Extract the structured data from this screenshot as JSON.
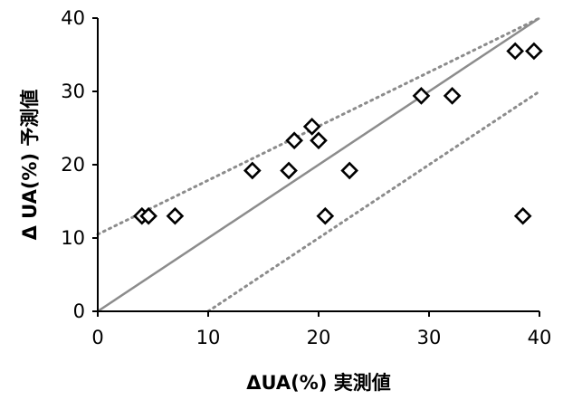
{
  "chart_data": {
    "type": "scatter",
    "xlabel": "ΔUA(%) 実測値",
    "ylabel": "Δ UA(%) 予測値",
    "xlim": [
      0,
      40
    ],
    "ylim": [
      0,
      40
    ],
    "x_ticks": [
      0,
      10,
      20,
      30,
      40
    ],
    "y_ticks": [
      0,
      10,
      20,
      30,
      40
    ],
    "grid": false,
    "legend": "none",
    "marker": "diamond-open",
    "marker_color": "#000000",
    "reference_lines": [
      {
        "style": "solid",
        "color": "#8c8c8c",
        "x": [
          0,
          40
        ],
        "y": [
          0,
          40
        ]
      },
      {
        "style": "dotted",
        "color": "#8c8c8c",
        "x": [
          0,
          40
        ],
        "y": [
          10.5,
          40
        ]
      },
      {
        "style": "dotted",
        "color": "#8c8c8c",
        "x": [
          10,
          40
        ],
        "y": [
          0,
          30
        ]
      }
    ],
    "points": [
      {
        "x": 4.0,
        "y": 13.0
      },
      {
        "x": 4.6,
        "y": 13.0
      },
      {
        "x": 7.0,
        "y": 13.0
      },
      {
        "x": 14.0,
        "y": 19.2
      },
      {
        "x": 17.3,
        "y": 19.2
      },
      {
        "x": 17.8,
        "y": 23.3
      },
      {
        "x": 19.4,
        "y": 25.2
      },
      {
        "x": 20.0,
        "y": 23.3
      },
      {
        "x": 20.6,
        "y": 13.0
      },
      {
        "x": 22.8,
        "y": 19.2
      },
      {
        "x": 29.3,
        "y": 29.4
      },
      {
        "x": 32.1,
        "y": 29.4
      },
      {
        "x": 37.8,
        "y": 35.5
      },
      {
        "x": 39.5,
        "y": 35.5
      },
      {
        "x": 38.5,
        "y": 13.0
      }
    ]
  }
}
